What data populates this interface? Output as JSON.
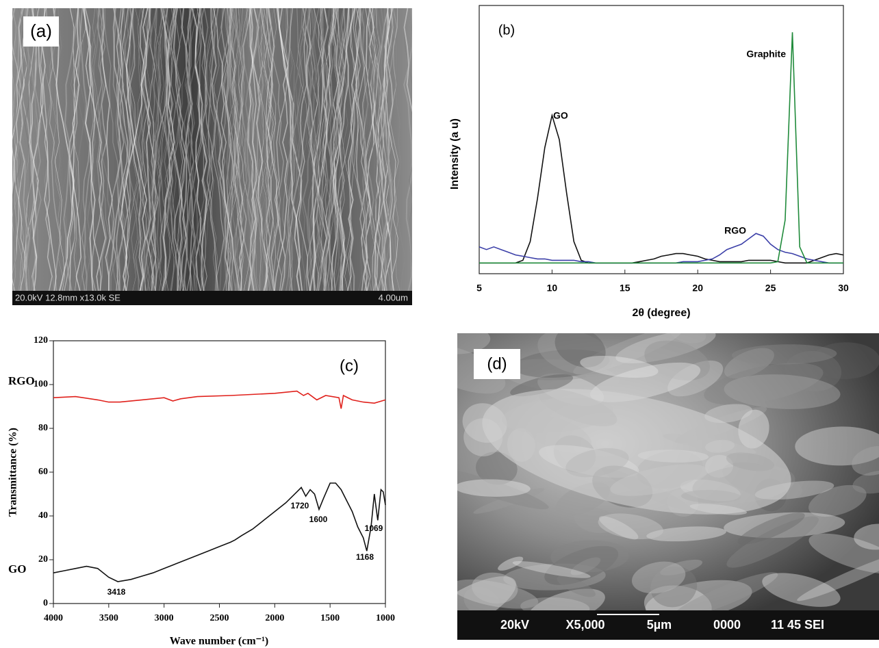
{
  "images": [
    {
      "panel_label": "(a)",
      "info": "20.0kV 12.8mm x13.0k SE",
      "scale": "4.00um"
    },
    {
      "panel_label": "(d)",
      "voltage": "20kV",
      "magnification": "X5,000",
      "scale": "5µm",
      "id": "0000",
      "info": "11 45 SEI"
    }
  ],
  "chart_data": [
    {
      "type": "line",
      "panel_label": "(b)",
      "x_label": "2θ (degree)",
      "y_label": "Intensity (a u)",
      "xlim": [
        5,
        30
      ],
      "xticks": [
        5,
        10,
        15,
        20,
        25,
        30
      ],
      "ylim": [
        0,
        100
      ],
      "x": [
        5,
        5.5,
        6,
        6.5,
        7,
        7.5,
        8,
        8.5,
        9,
        9.5,
        10,
        10.5,
        11,
        11.5,
        12,
        12.5,
        13,
        13.5,
        14,
        14.5,
        15,
        15.5,
        16,
        16.5,
        17,
        17.5,
        18,
        18.5,
        19,
        19.5,
        20,
        20.5,
        21,
        21.5,
        22,
        22.5,
        23,
        23.5,
        24,
        24.5,
        25,
        25.5,
        26,
        26.5,
        27,
        27.5,
        28,
        28.5,
        29,
        29.5,
        30
      ],
      "series": [
        {
          "name": "GO",
          "color": "#111111",
          "values": [
            4,
            4,
            4,
            4,
            4,
            4,
            5,
            12,
            28,
            47,
            59,
            50,
            30,
            12,
            5,
            4,
            4,
            4,
            4,
            4,
            4,
            4,
            4.5,
            5,
            5.5,
            6.5,
            7,
            7.5,
            7.5,
            7,
            6.5,
            5.5,
            5,
            4.5,
            4.5,
            4.5,
            4.5,
            5,
            5,
            5,
            5,
            4.5,
            4,
            4,
            4,
            4,
            5,
            6,
            7,
            7.5,
            7
          ]
        },
        {
          "name": "RGO",
          "color": "#3b3fa8",
          "values": [
            10,
            9,
            10,
            9,
            8,
            7,
            6.5,
            6,
            5.5,
            5.5,
            5,
            5,
            5,
            5,
            4.5,
            4.5,
            4,
            4,
            4,
            4,
            4,
            4,
            4,
            4,
            4,
            4,
            4,
            4,
            4.5,
            4.5,
            4.5,
            5,
            5.5,
            7,
            9,
            10,
            11,
            13,
            15,
            14,
            11,
            9,
            8,
            7.5,
            6.5,
            5.5,
            5,
            4.5,
            4,
            4,
            4
          ]
        },
        {
          "name": "Graphite",
          "color": "#1f8a3a",
          "values": [
            4,
            4,
            4,
            4,
            4,
            4,
            4,
            4,
            4,
            4,
            4,
            4,
            4,
            4,
            4,
            4,
            4,
            4,
            4,
            4,
            4,
            4,
            4,
            4,
            4,
            4,
            4,
            4,
            4,
            4,
            4,
            4,
            4,
            4,
            4,
            4,
            4,
            4,
            4,
            4,
            4,
            4.5,
            20,
            90,
            10,
            4,
            4,
            4,
            4,
            4,
            4
          ]
        }
      ]
    },
    {
      "type": "line",
      "panel_label": "(c)",
      "x_label": "Wave number (cm⁻¹)",
      "y_label": "Transmittance (%)",
      "xlim": [
        4000,
        1000
      ],
      "xticks": [
        4000,
        3500,
        3000,
        2500,
        2000,
        1500,
        1000
      ],
      "ylim": [
        0,
        120
      ],
      "yticks": [
        0,
        20,
        40,
        60,
        80,
        100,
        120
      ],
      "series": [
        {
          "name": "RGO",
          "color": "#e0201b",
          "x": [
            4000,
            3800,
            3600,
            3500,
            3400,
            3200,
            3000,
            2920,
            2850,
            2700,
            2400,
            2000,
            1800,
            1740,
            1700,
            1620,
            1540,
            1420,
            1400,
            1380,
            1300,
            1200,
            1100,
            1000
          ],
          "values": [
            94,
            94.5,
            93,
            92,
            92,
            93,
            94,
            92.5,
            93.5,
            94.5,
            95,
            96,
            97,
            95,
            96,
            93,
            95,
            94,
            89,
            95,
            93,
            92,
            91.5,
            93
          ]
        },
        {
          "name": "GO",
          "color": "#111111",
          "x": [
            4000,
            3900,
            3800,
            3700,
            3600,
            3500,
            3418,
            3300,
            3200,
            3100,
            3000,
            2900,
            2800,
            2700,
            2600,
            2500,
            2400,
            2360,
            2300,
            2200,
            2100,
            2000,
            1900,
            1800,
            1760,
            1720,
            1680,
            1640,
            1600,
            1560,
            1500,
            1450,
            1400,
            1350,
            1300,
            1250,
            1200,
            1168,
            1130,
            1100,
            1069,
            1040,
            1020,
            1000
          ],
          "values": [
            14,
            15,
            16,
            17,
            16,
            12,
            10,
            11,
            12.5,
            14,
            16,
            18,
            20,
            22,
            24,
            26,
            28,
            29,
            31,
            34,
            38,
            42,
            46,
            51,
            53,
            49,
            52,
            50,
            43,
            48,
            55,
            55,
            52,
            47,
            42,
            35,
            30,
            24,
            35,
            50,
            38,
            52,
            51,
            45
          ]
        }
      ],
      "annotations": [
        "3418",
        "1720",
        "1600",
        "1168",
        "1069"
      ]
    }
  ]
}
